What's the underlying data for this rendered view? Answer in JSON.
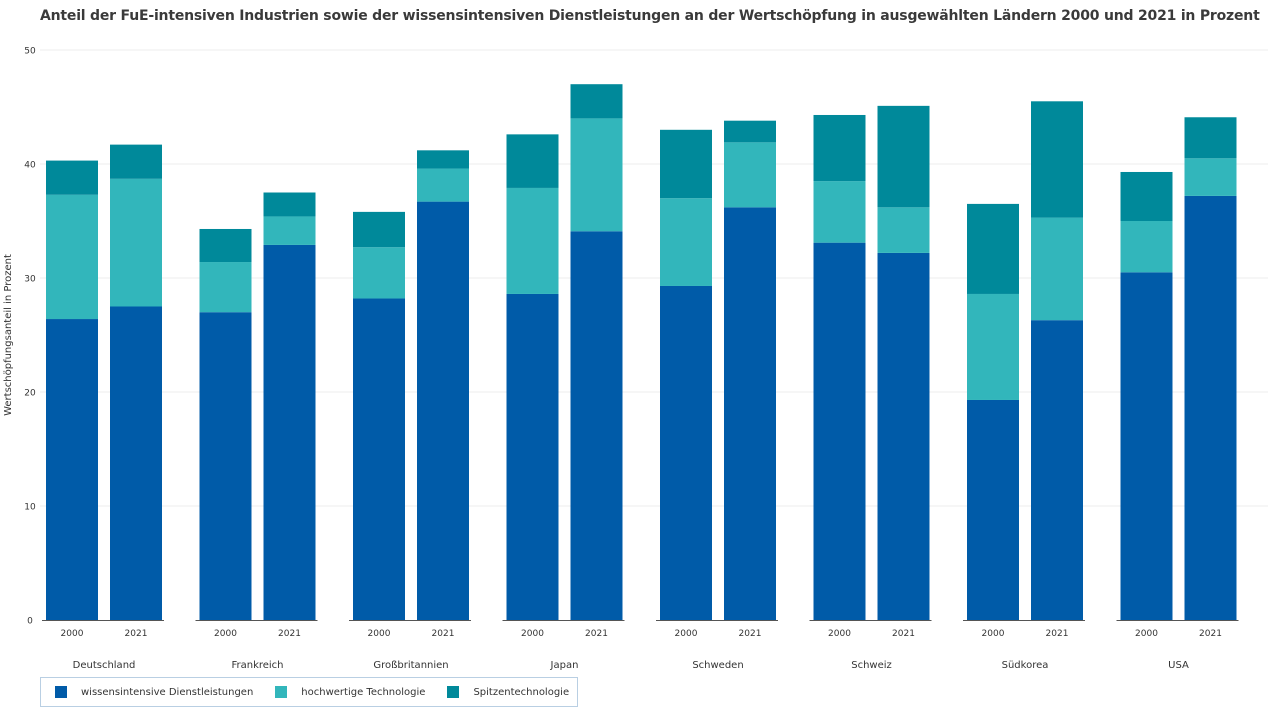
{
  "title": "Anteil der FuE-intensiven Industrien sowie der wissensintensiven Dienstleistungen an der Wertschöpfung in ausgewählten Ländern 2000 und 2021 in Prozent",
  "chart_data": {
    "type": "bar",
    "stacked": true,
    "grouped": true,
    "title": "Anteil der FuE-intensiven Industrien sowie der wissensintensiven Dienstleistungen an der Wertschöpfung in ausgewählten Ländern 2000 und 2021 in Prozent",
    "ylabel": "Wertschöpfungsanteil in Prozent",
    "ylim": [
      0,
      50
    ],
    "yticks": [
      0,
      10,
      20,
      30,
      40,
      50
    ],
    "grid": true,
    "legend_position": "bottom-left",
    "groups": [
      "Deutschland",
      "Frankreich",
      "Großbritannien",
      "Japan",
      "Schweden",
      "Schweiz",
      "Südkorea",
      "USA"
    ],
    "years": [
      "2000",
      "2021"
    ],
    "series": [
      {
        "name": "wissensintensive Dienstleistungen",
        "color": "#005ba8",
        "values": [
          [
            26.4,
            27.5
          ],
          [
            27.0,
            32.9
          ],
          [
            28.2,
            36.7
          ],
          [
            28.6,
            34.1
          ],
          [
            29.3,
            36.2
          ],
          [
            33.1,
            32.2
          ],
          [
            19.3,
            26.3
          ],
          [
            30.5,
            37.2
          ]
        ]
      },
      {
        "name": "hochwertige Technologie",
        "color": "#32b6bb",
        "values": [
          [
            10.9,
            11.2
          ],
          [
            4.4,
            2.5
          ],
          [
            4.5,
            2.9
          ],
          [
            9.3,
            9.9
          ],
          [
            7.7,
            5.7
          ],
          [
            5.4,
            4.0
          ],
          [
            9.3,
            9.0
          ],
          [
            4.5,
            3.3
          ]
        ]
      },
      {
        "name": "Spitzentechnologie",
        "color": "#00899a",
        "values": [
          [
            3.0,
            3.0
          ],
          [
            2.9,
            2.1
          ],
          [
            3.1,
            1.6
          ],
          [
            4.7,
            3.0
          ],
          [
            6.0,
            1.9
          ],
          [
            5.8,
            8.9
          ],
          [
            7.9,
            10.2
          ],
          [
            4.3,
            3.6
          ]
        ]
      }
    ]
  }
}
